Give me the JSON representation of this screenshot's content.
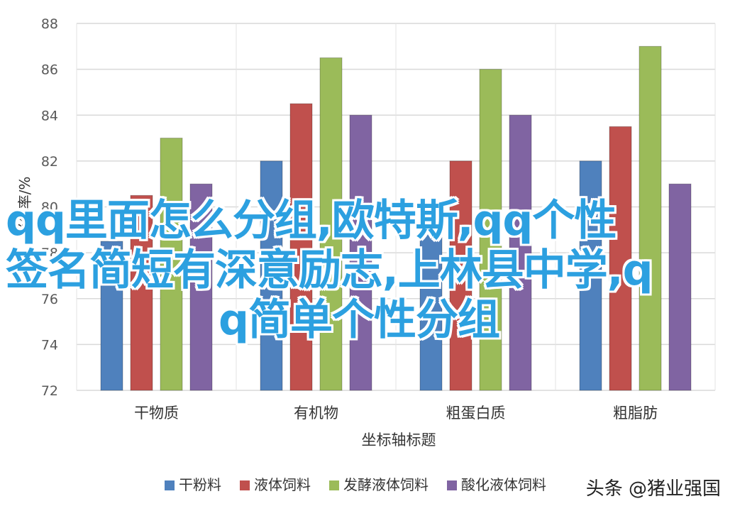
{
  "chart_data": {
    "type": "bar",
    "categories": [
      "干物质",
      "有机物",
      "粗蛋白质",
      "粗脂肪"
    ],
    "series": [
      {
        "name": "干粉料",
        "values": [
          78.5,
          82,
          79,
          82
        ],
        "color": "#4f81bd"
      },
      {
        "name": "液体饲料",
        "values": [
          80.5,
          84.5,
          82,
          83.5
        ],
        "color": "#c0504d"
      },
      {
        "name": "发酵液体饲料",
        "values": [
          83,
          86.5,
          86,
          87
        ],
        "color": "#9bbb59"
      },
      {
        "name": "酸化液体饲料",
        "values": [
          81,
          84,
          84,
          81
        ],
        "color": "#8064a2"
      }
    ],
    "yticks": [
      72,
      74,
      76,
      78,
      80,
      82,
      84,
      86,
      88
    ],
    "ylim": [
      72,
      88
    ],
    "xlabel": "坐标轴标题",
    "ylabel": "消化率/%",
    "legend_position": "bottom",
    "grid": true
  },
  "overlay": {
    "line1": "qq里面怎么分组,欧特斯,qq个性",
    "line2": "签名简短有深意励志,上林县中学,q",
    "line3": "q简单个性分组"
  },
  "watermark": "头条 @猪业强国"
}
